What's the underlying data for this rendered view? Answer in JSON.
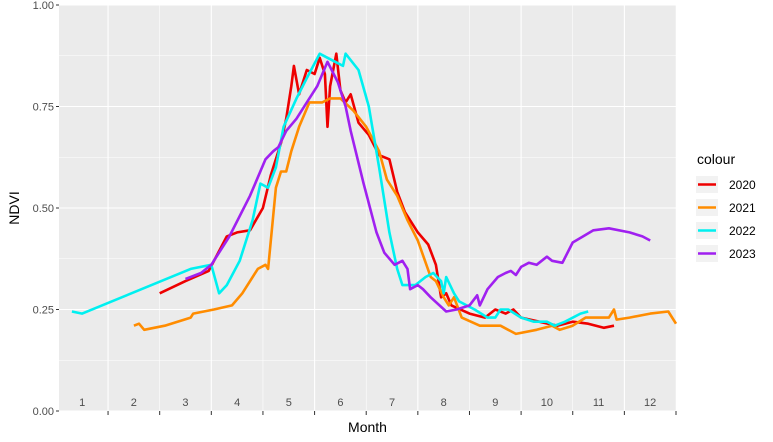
{
  "chart_data": {
    "type": "line",
    "xlabel": "Month",
    "ylabel": "NDVI",
    "xlim": [
      0.55,
      12.5
    ],
    "ylim": [
      0,
      1
    ],
    "y_ticks": [
      0.0,
      0.25,
      0.5,
      0.75,
      1.0
    ],
    "y_tick_labels": [
      "0.00",
      "0.25",
      "0.50",
      "0.75",
      "1.00"
    ],
    "x_month_labels": [
      "1",
      "2",
      "3",
      "4",
      "5",
      "6",
      "7",
      "8",
      "9",
      "10",
      "11",
      "12"
    ],
    "grid": true,
    "background": "#ebebeb",
    "legend": {
      "title": "colour",
      "position": "right"
    },
    "series": [
      {
        "name": "2020",
        "color": "#ee0000",
        "points": [
          [
            2.5,
            0.29
          ],
          [
            3.0,
            0.32
          ],
          [
            3.45,
            0.345
          ],
          [
            3.8,
            0.43
          ],
          [
            4.0,
            0.44
          ],
          [
            4.25,
            0.445
          ],
          [
            4.5,
            0.5
          ],
          [
            4.65,
            0.58
          ],
          [
            4.85,
            0.66
          ],
          [
            4.95,
            0.72
          ],
          [
            5.05,
            0.8
          ],
          [
            5.1,
            0.85
          ],
          [
            5.2,
            0.78
          ],
          [
            5.35,
            0.84
          ],
          [
            5.5,
            0.83
          ],
          [
            5.6,
            0.87
          ],
          [
            5.7,
            0.83
          ],
          [
            5.75,
            0.7
          ],
          [
            5.8,
            0.8
          ],
          [
            5.92,
            0.88
          ],
          [
            6.0,
            0.79
          ],
          [
            6.1,
            0.76
          ],
          [
            6.2,
            0.78
          ],
          [
            6.35,
            0.71
          ],
          [
            6.55,
            0.68
          ],
          [
            6.75,
            0.63
          ],
          [
            6.95,
            0.62
          ],
          [
            7.1,
            0.54
          ],
          [
            7.25,
            0.49
          ],
          [
            7.5,
            0.44
          ],
          [
            7.7,
            0.41
          ],
          [
            7.85,
            0.36
          ],
          [
            7.95,
            0.28
          ],
          [
            8.05,
            0.29
          ],
          [
            8.15,
            0.26
          ],
          [
            8.5,
            0.24
          ],
          [
            8.8,
            0.23
          ],
          [
            9.0,
            0.25
          ],
          [
            9.2,
            0.24
          ],
          [
            9.35,
            0.25
          ],
          [
            9.5,
            0.23
          ],
          [
            9.85,
            0.22
          ],
          [
            10.2,
            0.21
          ],
          [
            10.5,
            0.22
          ],
          [
            10.8,
            0.215
          ],
          [
            11.1,
            0.205
          ],
          [
            11.3,
            0.21
          ]
        ]
      },
      {
        "name": "2021",
        "color": "#ff8c00",
        "points": [
          [
            2.0,
            0.21
          ],
          [
            2.1,
            0.215
          ],
          [
            2.2,
            0.2
          ],
          [
            2.6,
            0.21
          ],
          [
            3.1,
            0.23
          ],
          [
            3.15,
            0.24
          ],
          [
            3.55,
            0.25
          ],
          [
            3.9,
            0.26
          ],
          [
            4.1,
            0.29
          ],
          [
            4.4,
            0.35
          ],
          [
            4.55,
            0.36
          ],
          [
            4.6,
            0.35
          ],
          [
            4.75,
            0.55
          ],
          [
            4.85,
            0.59
          ],
          [
            4.95,
            0.59
          ],
          [
            5.05,
            0.64
          ],
          [
            5.2,
            0.7
          ],
          [
            5.4,
            0.76
          ],
          [
            5.65,
            0.76
          ],
          [
            5.8,
            0.77
          ],
          [
            6.0,
            0.77
          ],
          [
            6.25,
            0.74
          ],
          [
            6.5,
            0.7
          ],
          [
            6.75,
            0.64
          ],
          [
            6.9,
            0.57
          ],
          [
            7.1,
            0.53
          ],
          [
            7.3,
            0.47
          ],
          [
            7.5,
            0.42
          ],
          [
            7.75,
            0.33
          ],
          [
            7.85,
            0.32
          ],
          [
            8.0,
            0.28
          ],
          [
            8.1,
            0.26
          ],
          [
            8.2,
            0.28
          ],
          [
            8.35,
            0.23
          ],
          [
            8.7,
            0.21
          ],
          [
            9.1,
            0.21
          ],
          [
            9.4,
            0.19
          ],
          [
            9.8,
            0.2
          ],
          [
            10.1,
            0.21
          ],
          [
            10.25,
            0.2
          ],
          [
            10.5,
            0.21
          ],
          [
            10.75,
            0.23
          ],
          [
            11.0,
            0.23
          ],
          [
            11.2,
            0.23
          ],
          [
            11.3,
            0.25
          ],
          [
            11.35,
            0.225
          ],
          [
            11.6,
            0.23
          ],
          [
            12.0,
            0.24
          ],
          [
            12.35,
            0.245
          ],
          [
            12.5,
            0.215
          ]
        ]
      },
      {
        "name": "2022",
        "color": "#00f0f0",
        "points": [
          [
            0.8,
            0.245
          ],
          [
            1.0,
            0.24
          ],
          [
            3.1,
            0.35
          ],
          [
            3.5,
            0.36
          ],
          [
            3.65,
            0.29
          ],
          [
            3.8,
            0.31
          ],
          [
            4.05,
            0.37
          ],
          [
            4.3,
            0.47
          ],
          [
            4.45,
            0.56
          ],
          [
            4.6,
            0.55
          ],
          [
            4.75,
            0.6
          ],
          [
            4.9,
            0.7
          ],
          [
            5.15,
            0.77
          ],
          [
            5.35,
            0.82
          ],
          [
            5.6,
            0.88
          ],
          [
            5.75,
            0.87
          ],
          [
            5.9,
            0.86
          ],
          [
            6.05,
            0.85
          ],
          [
            6.1,
            0.88
          ],
          [
            6.35,
            0.84
          ],
          [
            6.55,
            0.75
          ],
          [
            6.75,
            0.6
          ],
          [
            6.95,
            0.44
          ],
          [
            7.1,
            0.35
          ],
          [
            7.2,
            0.31
          ],
          [
            7.45,
            0.31
          ],
          [
            7.65,
            0.33
          ],
          [
            7.8,
            0.34
          ],
          [
            7.95,
            0.32
          ],
          [
            8.0,
            0.29
          ],
          [
            8.05,
            0.33
          ],
          [
            8.2,
            0.29
          ],
          [
            8.3,
            0.27
          ],
          [
            8.6,
            0.25
          ],
          [
            8.85,
            0.23
          ],
          [
            9.0,
            0.23
          ],
          [
            9.1,
            0.25
          ],
          [
            9.25,
            0.25
          ],
          [
            9.5,
            0.23
          ],
          [
            9.75,
            0.22
          ],
          [
            10.0,
            0.22
          ],
          [
            10.15,
            0.21
          ],
          [
            10.35,
            0.22
          ],
          [
            10.65,
            0.24
          ],
          [
            10.8,
            0.245
          ]
        ]
      },
      {
        "name": "2023",
        "color": "#a020f0",
        "points": [
          [
            3.0,
            0.325
          ],
          [
            3.3,
            0.34
          ],
          [
            3.5,
            0.36
          ],
          [
            3.85,
            0.43
          ],
          [
            4.25,
            0.53
          ],
          [
            4.55,
            0.62
          ],
          [
            4.7,
            0.64
          ],
          [
            4.8,
            0.65
          ],
          [
            4.95,
            0.69
          ],
          [
            5.15,
            0.72
          ],
          [
            5.35,
            0.76
          ],
          [
            5.55,
            0.8
          ],
          [
            5.75,
            0.86
          ],
          [
            5.95,
            0.81
          ],
          [
            6.1,
            0.75
          ],
          [
            6.2,
            0.69
          ],
          [
            6.45,
            0.56
          ],
          [
            6.7,
            0.44
          ],
          [
            6.85,
            0.39
          ],
          [
            7.05,
            0.36
          ],
          [
            7.2,
            0.37
          ],
          [
            7.3,
            0.35
          ],
          [
            7.35,
            0.3
          ],
          [
            7.5,
            0.31
          ],
          [
            7.6,
            0.3
          ],
          [
            7.75,
            0.28
          ],
          [
            8.05,
            0.245
          ],
          [
            8.25,
            0.25
          ],
          [
            8.5,
            0.26
          ],
          [
            8.65,
            0.285
          ],
          [
            8.7,
            0.26
          ],
          [
            8.85,
            0.3
          ],
          [
            9.05,
            0.33
          ],
          [
            9.2,
            0.34
          ],
          [
            9.3,
            0.345
          ],
          [
            9.4,
            0.335
          ],
          [
            9.5,
            0.355
          ],
          [
            9.65,
            0.365
          ],
          [
            9.8,
            0.36
          ],
          [
            10.0,
            0.38
          ],
          [
            10.1,
            0.37
          ],
          [
            10.3,
            0.365
          ],
          [
            10.5,
            0.415
          ],
          [
            10.7,
            0.43
          ],
          [
            10.9,
            0.445
          ],
          [
            11.2,
            0.45
          ],
          [
            11.6,
            0.44
          ],
          [
            11.85,
            0.43
          ],
          [
            12.0,
            0.42
          ]
        ]
      }
    ]
  }
}
